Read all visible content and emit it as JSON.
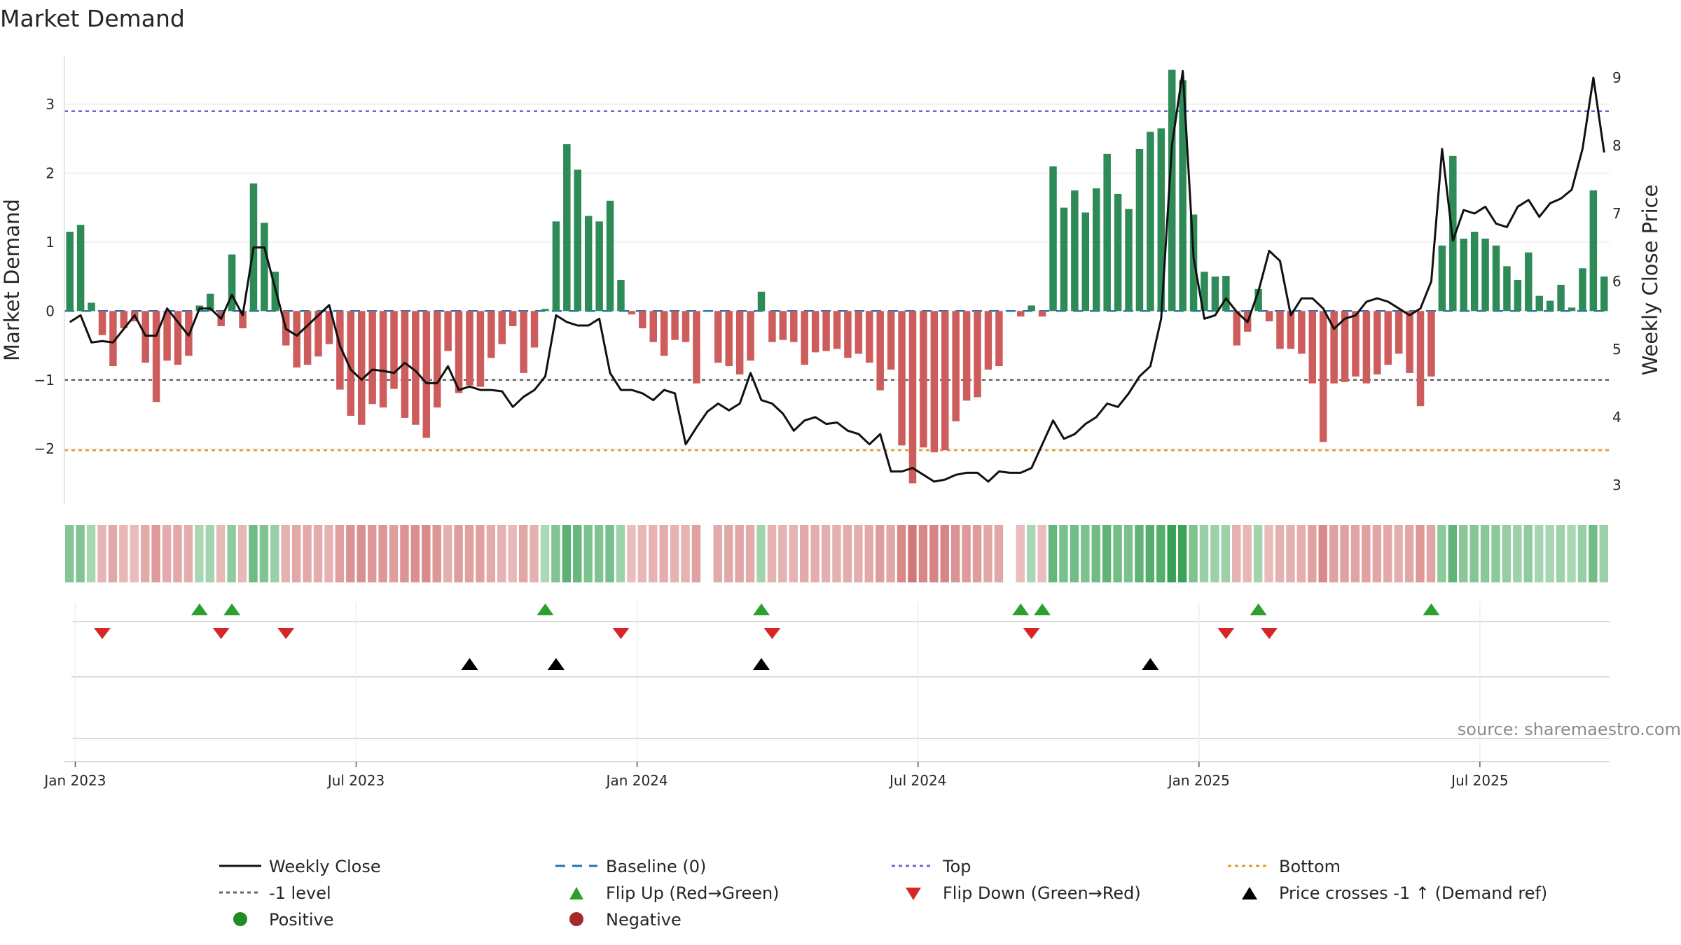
{
  "chart_data": {
    "type": "bar",
    "title": "Market Demand",
    "ylabel": "Market Demand",
    "y2label": "Weekly Close Price",
    "ylim": [
      -2.8,
      3.7
    ],
    "y2lim": [
      2.72,
      9.32
    ],
    "yticks": [
      "−2",
      "−1",
      "0",
      "1",
      "2",
      "3"
    ],
    "yticks_values": [
      -2,
      -1,
      0,
      1,
      2,
      3
    ],
    "y2ticks": [
      "3",
      "4",
      "5",
      "6",
      "7",
      "8",
      "9"
    ],
    "y2ticks_values": [
      3,
      4,
      5,
      6,
      7,
      8,
      9
    ],
    "xticks": [
      "Jan 2023",
      "Jul 2023",
      "Jan 2024",
      "Jul 2024",
      "Jan 2025",
      "Jul 2025"
    ],
    "xticks_week_index": [
      1,
      27,
      53,
      79,
      105,
      131
    ],
    "reference_lines": {
      "top": 2.9,
      "minus_one": -1,
      "bottom": -2.02,
      "baseline": 0
    },
    "demand": [
      1.15,
      1.25,
      0.12,
      -0.35,
      -0.8,
      -0.25,
      -0.15,
      -0.75,
      -1.32,
      -0.72,
      -0.78,
      -0.65,
      0.08,
      0.25,
      -0.22,
      0.82,
      -0.25,
      1.85,
      1.28,
      0.57,
      -0.5,
      -0.82,
      -0.78,
      -0.66,
      -0.48,
      -1.14,
      -1.52,
      -1.65,
      -1.35,
      -1.4,
      -1.13,
      -1.55,
      -1.65,
      -1.84,
      -1.4,
      -0.58,
      -1.19,
      -1.08,
      -1.1,
      -0.68,
      -0.48,
      -0.22,
      -0.9,
      -0.53,
      0.03,
      1.3,
      2.42,
      2.05,
      1.38,
      1.3,
      1.6,
      0.45,
      -0.05,
      -0.25,
      -0.45,
      -0.65,
      -0.42,
      -0.45,
      -1.05,
      0,
      -0.75,
      -0.8,
      -0.92,
      -0.72,
      0.28,
      -0.45,
      -0.42,
      -0.45,
      -0.78,
      -0.6,
      -0.58,
      -0.55,
      -0.68,
      -0.62,
      -0.75,
      -1.15,
      -0.85,
      -1.95,
      -2.5,
      -1.98,
      -2.05,
      -2.02,
      -1.6,
      -1.3,
      -1.25,
      -0.85,
      -0.8,
      0,
      -0.08,
      0.08,
      -0.08,
      2.1,
      1.5,
      1.75,
      1.43,
      1.78,
      2.28,
      1.7,
      1.48,
      2.35,
      2.6,
      2.65,
      3.5,
      3.35,
      1.4,
      0.57,
      0.5,
      0.51,
      -0.5,
      -0.3,
      0.32,
      -0.15,
      -0.55,
      -0.55,
      -0.62,
      -1.05,
      -1.9,
      -1.05,
      -1.03,
      -0.95,
      -1.05,
      -0.92,
      -0.78,
      -0.62,
      -0.9,
      -1.38,
      -0.95,
      0.95,
      2.25,
      1.05,
      1.15,
      1.05,
      0.95,
      0.65,
      0.45,
      0.85,
      0.22,
      0.15,
      0.38,
      0.05,
      0.62,
      1.75,
      0.5
    ],
    "weekly_close": [
      5.4,
      5.5,
      5.1,
      5.12,
      5.1,
      5.3,
      5.5,
      5.2,
      5.2,
      5.6,
      5.4,
      5.2,
      5.6,
      5.6,
      5.45,
      5.8,
      5.5,
      6.5,
      6.5,
      5.9,
      5.3,
      5.2,
      5.35,
      5.5,
      5.65,
      5.05,
      4.7,
      4.55,
      4.7,
      4.68,
      4.65,
      4.8,
      4.68,
      4.5,
      4.5,
      4.75,
      4.4,
      4.45,
      4.4,
      4.4,
      4.38,
      4.15,
      4.3,
      4.4,
      4.6,
      5.5,
      5.4,
      5.35,
      5.35,
      5.45,
      4.65,
      4.4,
      4.4,
      4.35,
      4.25,
      4.4,
      4.35,
      3.6,
      3.85,
      4.08,
      4.2,
      4.1,
      4.2,
      4.65,
      4.25,
      4.2,
      4.05,
      3.8,
      3.95,
      4.0,
      3.9,
      3.92,
      3.8,
      3.75,
      3.6,
      3.75,
      3.2,
      3.2,
      3.25,
      3.15,
      3.05,
      3.08,
      3.15,
      3.18,
      3.18,
      3.05,
      3.2,
      3.18,
      3.18,
      3.25,
      3.6,
      3.95,
      3.68,
      3.75,
      3.9,
      4.0,
      4.2,
      4.15,
      4.35,
      4.6,
      4.75,
      5.45,
      8.0,
      9.1,
      6.35,
      5.45,
      5.5,
      5.75,
      5.55,
      5.4,
      5.85,
      6.45,
      6.3,
      5.5,
      5.75,
      5.75,
      5.6,
      5.3,
      5.45,
      5.5,
      5.7,
      5.75,
      5.7,
      5.6,
      5.5,
      5.6,
      6.0,
      7.95,
      6.6,
      7.05,
      7.0,
      7.1,
      6.85,
      6.8,
      7.1,
      7.2,
      6.95,
      7.15,
      7.22,
      7.35,
      7.95,
      9.0,
      7.9
    ],
    "flip_up_weeks": [
      12,
      15,
      44,
      64,
      88,
      90,
      110,
      126
    ],
    "flip_down_weeks": [
      3,
      14,
      20,
      51,
      65,
      89,
      107,
      111
    ],
    "price_cross_weeks": [
      37,
      45,
      64,
      100
    ],
    "legend": [
      "Weekly Close",
      "Baseline (0)",
      "Top",
      "Bottom",
      "-1 level",
      "Flip Up (Red→Green)",
      "Flip Down (Green→Red)",
      "Price crosses -1 ↑ (Demand ref)",
      "Positive",
      "Negative"
    ]
  },
  "colors": {
    "positive": "#2e8b57",
    "negative": "#cd5c5c",
    "price": "#111111",
    "top": "#6a6ad0",
    "bottom": "#e09a2a",
    "minus_one": "#666666",
    "baseline": "#1f77b4",
    "flip_up": "#2ca02c",
    "flip_down": "#d62728",
    "cross": "#000000"
  },
  "source": "source: sharemaestro.com"
}
